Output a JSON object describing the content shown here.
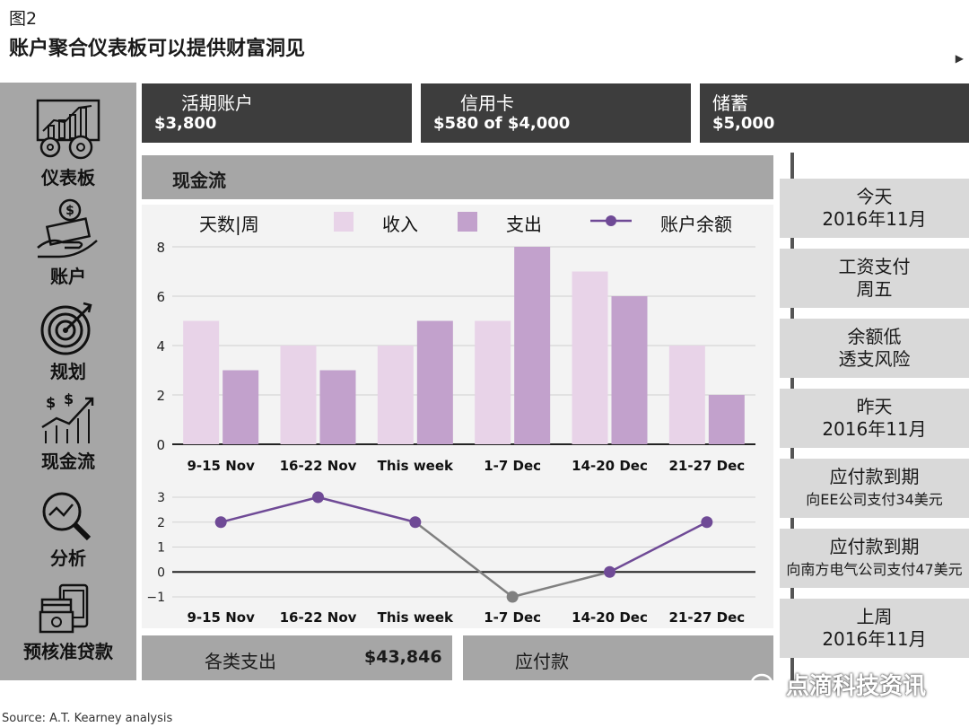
{
  "figure": {
    "label": "图2",
    "title": "账户聚合仪表板可以提供财富洞见"
  },
  "sidebar": {
    "items": [
      {
        "label": "仪表板",
        "icon": "dashboard-gears-icon"
      },
      {
        "label": "账户",
        "icon": "money-hand-icon"
      },
      {
        "label": "规划",
        "icon": "target-icon"
      },
      {
        "label": "现金流",
        "icon": "cashflow-icon"
      },
      {
        "label": "分析",
        "icon": "magnifier-chart-icon"
      },
      {
        "label": "预核准贷款",
        "icon": "wallet-card-icon"
      }
    ]
  },
  "accounts": [
    {
      "name": "活期账户",
      "value": "$3,800"
    },
    {
      "name": "信用卡",
      "value": "$580 of $4,000"
    },
    {
      "name": "储蓄",
      "value": "$5,000"
    }
  ],
  "cashflow": {
    "title": "现金流"
  },
  "chart_data": [
    {
      "type": "bar",
      "xlabel": "天数|周",
      "categories": [
        "9-15 Nov",
        "16-22 Nov",
        "This week",
        "1-7 Dec",
        "14-20 Dec",
        "21-27 Dec"
      ],
      "series": [
        {
          "name": "收入",
          "values": [
            5,
            4,
            4,
            5,
            7,
            4
          ],
          "color": "#e8d3e8"
        },
        {
          "name": "支出",
          "values": [
            3,
            3,
            5,
            8,
            6,
            2
          ],
          "color": "#c2a1cc"
        }
      ],
      "ylim": [
        0,
        8
      ],
      "yticks": [
        0,
        2,
        4,
        6,
        8
      ],
      "grid": true,
      "legend": "top"
    },
    {
      "type": "line",
      "categories": [
        "9-15 Nov",
        "16-22 Nov",
        "This week",
        "1-7 Dec",
        "14-20 Dec",
        "21-27 Dec"
      ],
      "series": [
        {
          "name": "账户余额",
          "values": [
            2,
            3,
            2,
            -1,
            0,
            2
          ],
          "color": "#6f4a96",
          "negative_color": "#808080"
        }
      ],
      "ylim": [
        -1,
        3
      ],
      "yticks": [
        3,
        2,
        1,
        0,
        -1
      ],
      "ytick_labels": [
        "3",
        "2",
        "1",
        "0",
        "−1"
      ],
      "grid": true
    }
  ],
  "bottom": {
    "expenses_label": "各类支出",
    "expenses_value": "$43,846",
    "payables_label": "应付款"
  },
  "timeline": [
    {
      "title": "今天",
      "detail": "2016年11月"
    },
    {
      "title": "工资支付",
      "detail": "周五"
    },
    {
      "title": "余额低",
      "detail": "透支风险"
    },
    {
      "title": "昨天",
      "detail": "2016年11月"
    },
    {
      "title": "应付款到期",
      "detail": "向EE公司支付34美元"
    },
    {
      "title": "应付款到期",
      "detail": "向南方电气公司支付47美元"
    },
    {
      "title": "上周",
      "detail": "2016年11月"
    }
  ],
  "source": "Source: A.T. Kearney analysis",
  "watermark": "点滴科技资讯"
}
